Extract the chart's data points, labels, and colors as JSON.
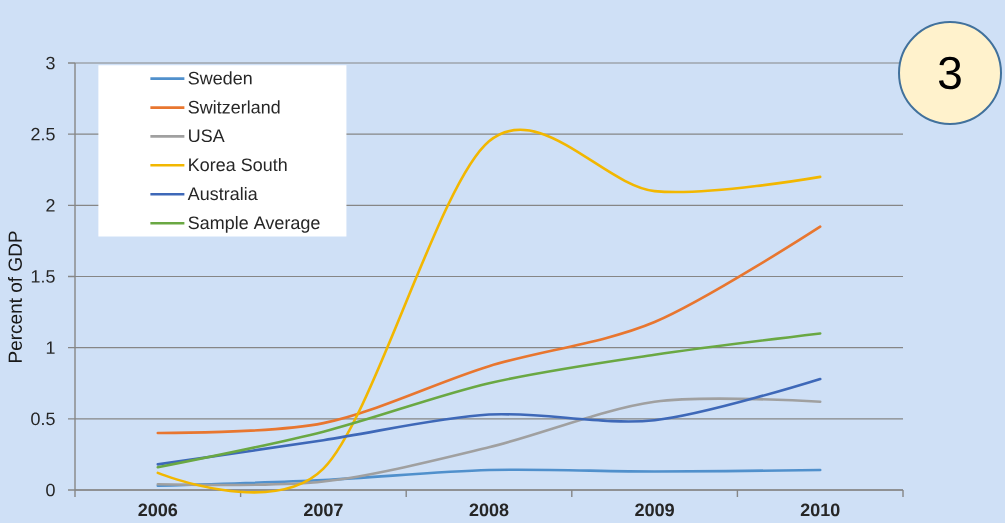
{
  "chart_data": {
    "type": "line",
    "ylabel": "Percent of GDP",
    "categories": [
      "2006",
      "2007",
      "2008",
      "2009",
      "2010"
    ],
    "series": [
      {
        "name": "Sweden",
        "color": "#5090cc",
        "values": [
          0.03,
          0.07,
          0.14,
          0.13,
          0.14
        ]
      },
      {
        "name": "Switzerland",
        "color": "#e8762f",
        "values": [
          0.4,
          0.47,
          0.87,
          1.18,
          1.85
        ]
      },
      {
        "name": "USA",
        "color": "#a0a0a0",
        "values": [
          0.04,
          0.06,
          0.3,
          0.62,
          0.62
        ]
      },
      {
        "name": "Korea South",
        "color": "#f2b700",
        "values": [
          0.12,
          0.15,
          2.45,
          2.1,
          2.2
        ]
      },
      {
        "name": "Australia",
        "color": "#3e68b8",
        "values": [
          0.18,
          0.35,
          0.53,
          0.49,
          0.78
        ]
      },
      {
        "name": "Sample Average",
        "color": "#6aa843",
        "values": [
          0.16,
          0.41,
          0.75,
          0.95,
          1.1
        ]
      }
    ],
    "ylim": [
      0,
      3
    ],
    "yticks": [
      0,
      0.5,
      1,
      1.5,
      2,
      2.5,
      3
    ],
    "grid": "y",
    "legend": "top left",
    "line_style": "solid",
    "annotations": [
      "3"
    ]
  }
}
